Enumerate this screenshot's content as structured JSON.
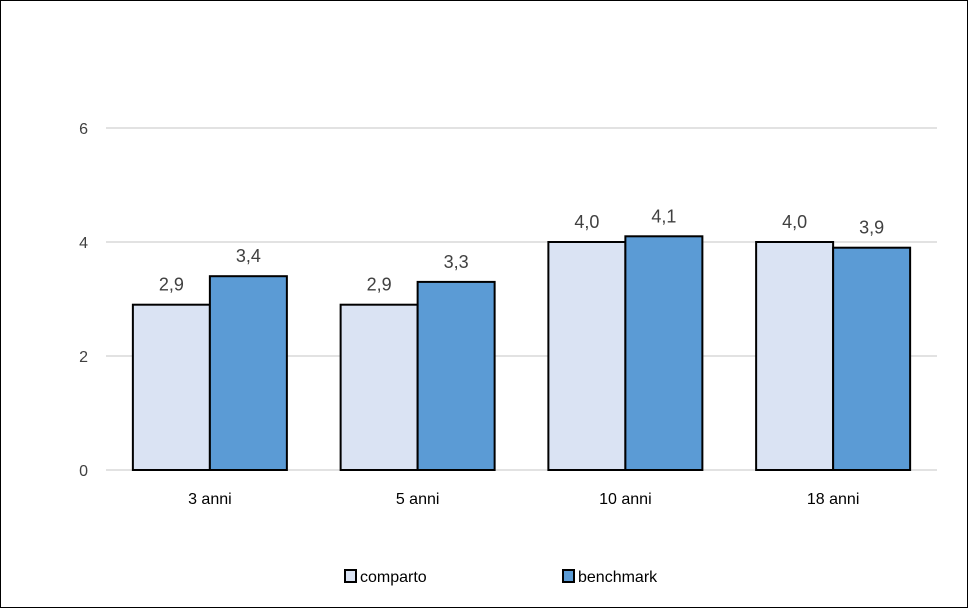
{
  "chart_data": {
    "type": "bar",
    "categories": [
      "3 anni",
      "5 anni",
      "10 anni",
      "18 anni"
    ],
    "series": [
      {
        "name": "comparto",
        "values": [
          2.9,
          2.9,
          4.0,
          4.0
        ],
        "labels": [
          "2,9",
          "2,9",
          "4,0",
          "4,0"
        ],
        "color": "#DAE3F3"
      },
      {
        "name": "benchmark",
        "values": [
          3.4,
          3.3,
          4.1,
          3.9
        ],
        "labels": [
          "3,4",
          "3,3",
          "4,1",
          "3,9"
        ],
        "color": "#5B9BD5"
      }
    ],
    "yticks": [
      0,
      2,
      4,
      6
    ],
    "ytick_labels": [
      "0",
      "2",
      "4",
      "6"
    ],
    "ylim": [
      0,
      8
    ],
    "grid": true,
    "legend_position": "bottom",
    "gridline_color": "#D9D9D9",
    "bar_outline_color": "#000000"
  }
}
